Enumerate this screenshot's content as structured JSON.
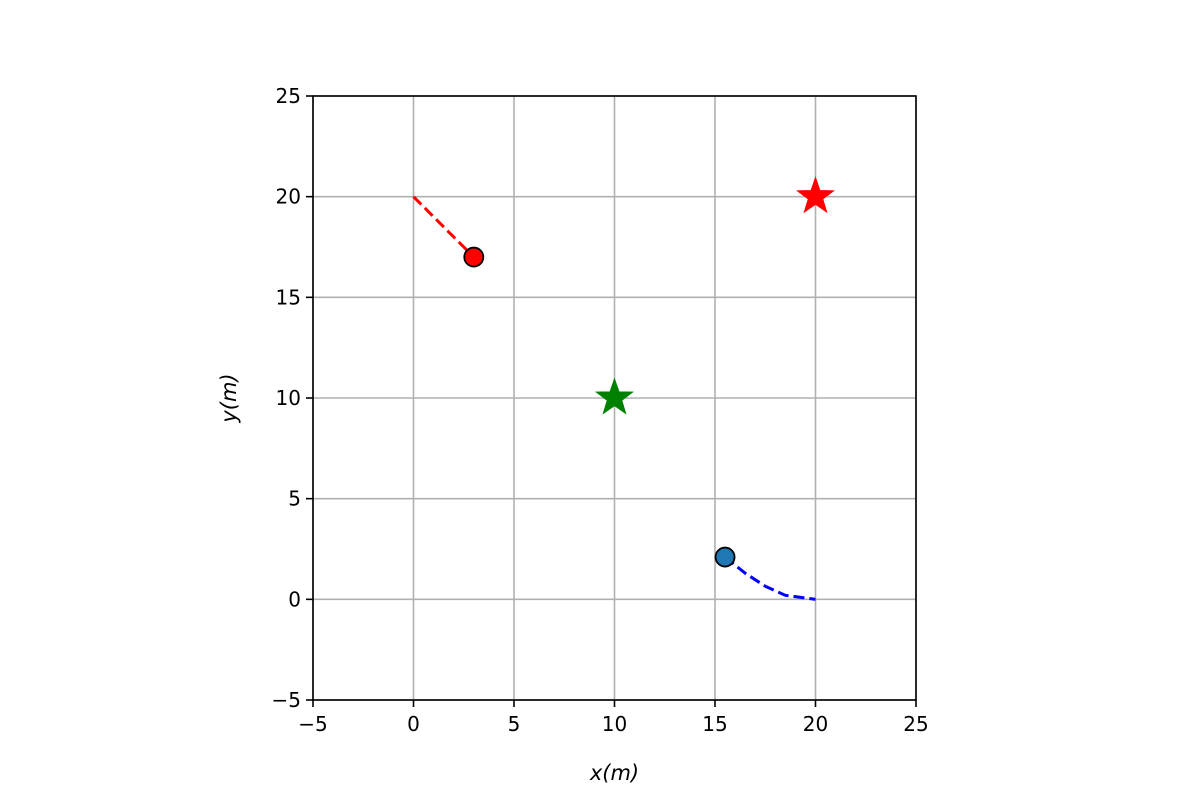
{
  "chart_data": {
    "type": "scatter",
    "xlabel": "x(m)",
    "ylabel": "y(m)",
    "xlim": [
      -5,
      25
    ],
    "ylim": [
      -5,
      25
    ],
    "xticks": [
      -5,
      0,
      5,
      10,
      15,
      20,
      25
    ],
    "yticks": [
      -5,
      0,
      5,
      10,
      15,
      20,
      25
    ],
    "xtick_labels": [
      "−5",
      "0",
      "5",
      "10",
      "15",
      "20",
      "25"
    ],
    "ytick_labels": [
      "−5",
      "0",
      "5",
      "10",
      "15",
      "20",
      "25"
    ],
    "grid": true,
    "colors": {
      "grid": "#b0b0b0",
      "axes": "#000000",
      "red": "#ff0000",
      "blue": "#0000ff",
      "green": "#008000",
      "blue_marker": "#1f77b4"
    },
    "paths": [
      {
        "color": "#ff0000",
        "style": "dashed",
        "points": [
          [
            0,
            20
          ],
          [
            3,
            17
          ]
        ]
      },
      {
        "color": "#0000ff",
        "style": "dashed",
        "points": [
          [
            15.5,
            2.1
          ],
          [
            16.5,
            1.3
          ],
          [
            17.5,
            0.65
          ],
          [
            18.5,
            0.2
          ],
          [
            20,
            0
          ]
        ]
      }
    ],
    "markers": [
      {
        "shape": "circle",
        "x": 3,
        "y": 17,
        "fill": "#ff0000"
      },
      {
        "shape": "circle",
        "x": 15.5,
        "y": 2.1,
        "fill": "#1f77b4"
      },
      {
        "shape": "star",
        "x": 20,
        "y": 20,
        "fill": "#ff0000"
      },
      {
        "shape": "star",
        "x": 10,
        "y": 10,
        "fill": "#008000"
      }
    ]
  }
}
